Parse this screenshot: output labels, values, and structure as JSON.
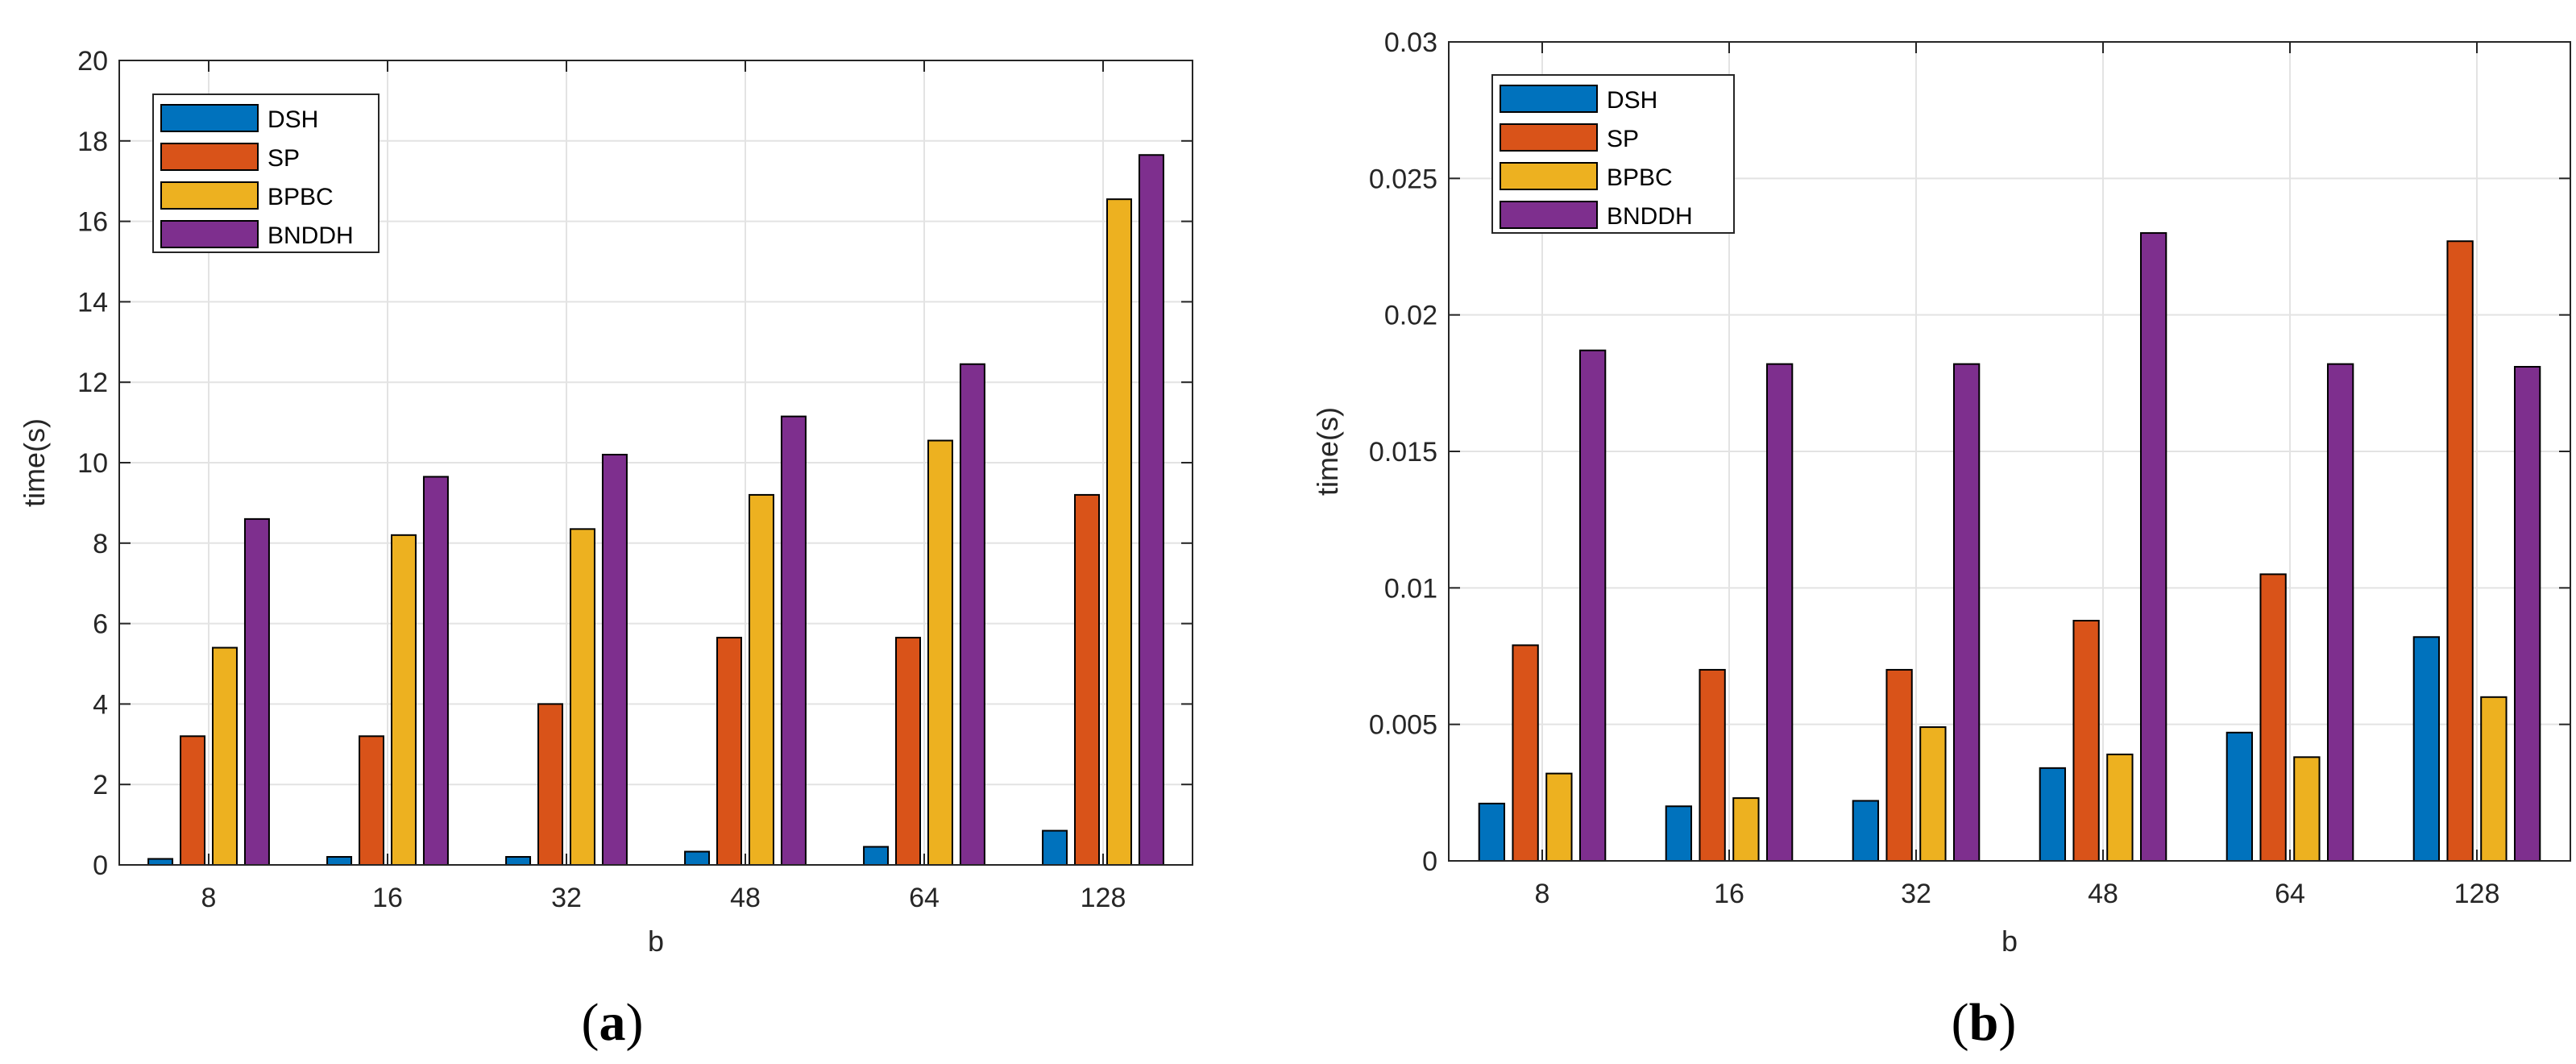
{
  "chart_data": [
    {
      "type": "bar",
      "caption_letter": "a",
      "categories": [
        "8",
        "16",
        "32",
        "48",
        "64",
        "128"
      ],
      "xlabel": "b",
      "ylabel": "time(s)",
      "ylim": [
        0,
        20
      ],
      "yticks": [
        "0",
        "2",
        "4",
        "6",
        "8",
        "10",
        "12",
        "14",
        "16",
        "18",
        "20"
      ],
      "ytick_values": [
        0,
        2,
        4,
        6,
        8,
        10,
        12,
        14,
        16,
        18,
        20
      ],
      "grid": true,
      "legend_position": "top-left",
      "series": [
        {
          "name": "DSH",
          "color": "#0072BD",
          "values": [
            0.15,
            0.2,
            0.2,
            0.33,
            0.45,
            0.85
          ]
        },
        {
          "name": "SP",
          "color": "#D95319",
          "values": [
            3.2,
            3.2,
            4.0,
            5.65,
            5.65,
            9.2
          ]
        },
        {
          "name": "BPBC",
          "color": "#EDB120",
          "values": [
            5.4,
            8.2,
            8.35,
            9.2,
            10.55,
            16.55
          ]
        },
        {
          "name": "BNDDH",
          "color": "#7E2F8E",
          "values": [
            8.6,
            9.65,
            10.2,
            11.15,
            12.45,
            17.65
          ]
        }
      ]
    },
    {
      "type": "bar",
      "caption_letter": "b",
      "categories": [
        "8",
        "16",
        "32",
        "48",
        "64",
        "128"
      ],
      "xlabel": "b",
      "ylabel": "time(s)",
      "ylim": [
        0,
        0.03
      ],
      "yticks": [
        "0",
        "0.005",
        "0.01",
        "0.015",
        "0.02",
        "0.025",
        "0.03"
      ],
      "ytick_values": [
        0,
        0.005,
        0.01,
        0.015,
        0.02,
        0.025,
        0.03
      ],
      "grid": true,
      "legend_position": "top-left",
      "series": [
        {
          "name": "DSH",
          "color": "#0072BD",
          "values": [
            0.0021,
            0.002,
            0.0022,
            0.0034,
            0.0047,
            0.0082
          ]
        },
        {
          "name": "SP",
          "color": "#D95319",
          "values": [
            0.0079,
            0.007,
            0.007,
            0.0088,
            0.0105,
            0.0227
          ]
        },
        {
          "name": "BPBC",
          "color": "#EDB120",
          "values": [
            0.0032,
            0.0023,
            0.0049,
            0.0039,
            0.0038,
            0.006
          ]
        },
        {
          "name": "BNDDH",
          "color": "#7E2F8E",
          "values": [
            0.0187,
            0.0182,
            0.0182,
            0.023,
            0.0182,
            0.0181
          ]
        }
      ]
    }
  ]
}
